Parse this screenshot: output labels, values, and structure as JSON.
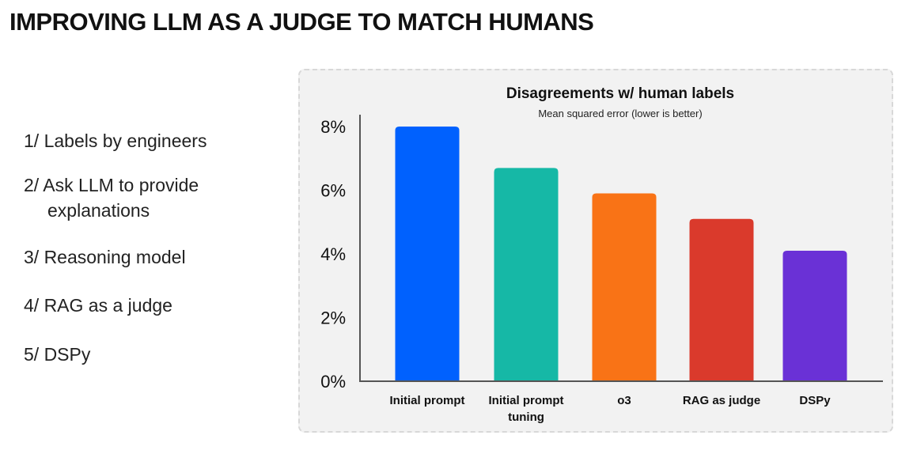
{
  "slide": {
    "title": "IMPROVING LLM AS A JUDGE TO MATCH HUMANS",
    "steps": [
      {
        "line1": "1/ Labels by engineers"
      },
      {
        "line1": "2/ Ask LLM to provide",
        "line2": "explanations"
      },
      {
        "line1": "3/ Reasoning model"
      },
      {
        "line1": "4/ RAG as a judge"
      },
      {
        "line1": "5/ DSPy"
      }
    ]
  },
  "chart_data": {
    "type": "bar",
    "title": "Disagreements w/ human labels",
    "subtitle": "Mean squared error (lower is better)",
    "categories": [
      [
        "Initial prompt"
      ],
      [
        "Initial prompt",
        "tuning"
      ],
      [
        "o3"
      ],
      [
        "RAG as judge"
      ],
      [
        "DSPy"
      ]
    ],
    "values": [
      8.0,
      6.7,
      5.9,
      5.1,
      4.1
    ],
    "colors": [
      "#0061fe",
      "#16b8a6",
      "#f97316",
      "#da3a2c",
      "#6a31d6"
    ],
    "ylim": [
      0,
      8
    ],
    "yticks": [
      "0%",
      "2%",
      "4%",
      "6%",
      "8%"
    ],
    "ytick_values": [
      0,
      2,
      4,
      6,
      8
    ],
    "grid": false,
    "legend": "none"
  }
}
